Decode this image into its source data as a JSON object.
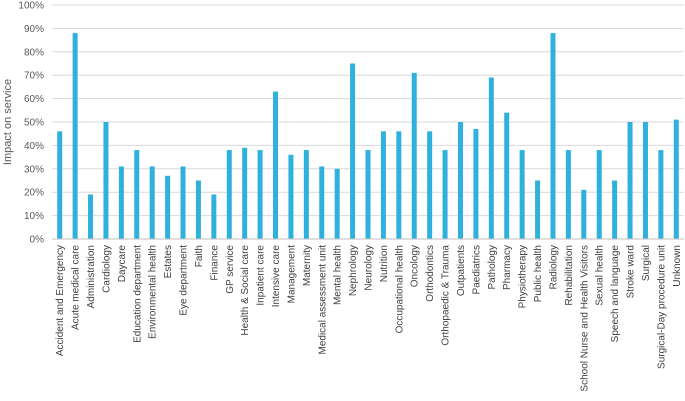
{
  "chart_data": {
    "type": "bar",
    "title": "",
    "xlabel": "",
    "ylabel": "Impact on service",
    "ylim": [
      0,
      100
    ],
    "yticks": [
      "0%",
      "10%",
      "20%",
      "30%",
      "40%",
      "50%",
      "60%",
      "70%",
      "80%",
      "90%",
      "100%"
    ],
    "grid": true,
    "bar_color": "#2fb1dd",
    "categories": [
      "Accident and Emergency",
      "Acute medical care",
      "Administration",
      "Cardiology",
      "Daycare",
      "Education department",
      "Environmental health",
      "Estates",
      "Eye department",
      "Faith",
      "Finance",
      "GP service",
      "Health & Social care",
      "Inpatient care",
      "Intensive care",
      "Management",
      "Maternity",
      "Medical assessment unit",
      "Mental health",
      "Nephrology",
      "Neurology",
      "Nutrition",
      "Occupational health",
      "Oncology",
      "Orthodontics",
      "Orthopaedic & Trauma",
      "Outpatients",
      "Paediatrics",
      "Pathology",
      "Pharmacy",
      "Physiotherapy",
      "Public health",
      "Radiology",
      "Rehabilitation",
      "School Nurse and Health Visitors",
      "Sexual health",
      "Speech and language",
      "Stroke ward",
      "Surgical",
      "Surgical-Day procedure unit",
      "Unknown"
    ],
    "values": [
      46,
      88,
      19,
      50,
      31,
      38,
      31,
      27,
      31,
      25,
      19,
      38,
      39,
      38,
      63,
      36,
      38,
      31,
      30,
      75,
      38,
      46,
      46,
      71,
      46,
      38,
      50,
      47,
      69,
      54,
      38,
      25,
      88,
      38,
      21,
      38,
      25,
      50,
      50,
      38,
      51
    ]
  }
}
